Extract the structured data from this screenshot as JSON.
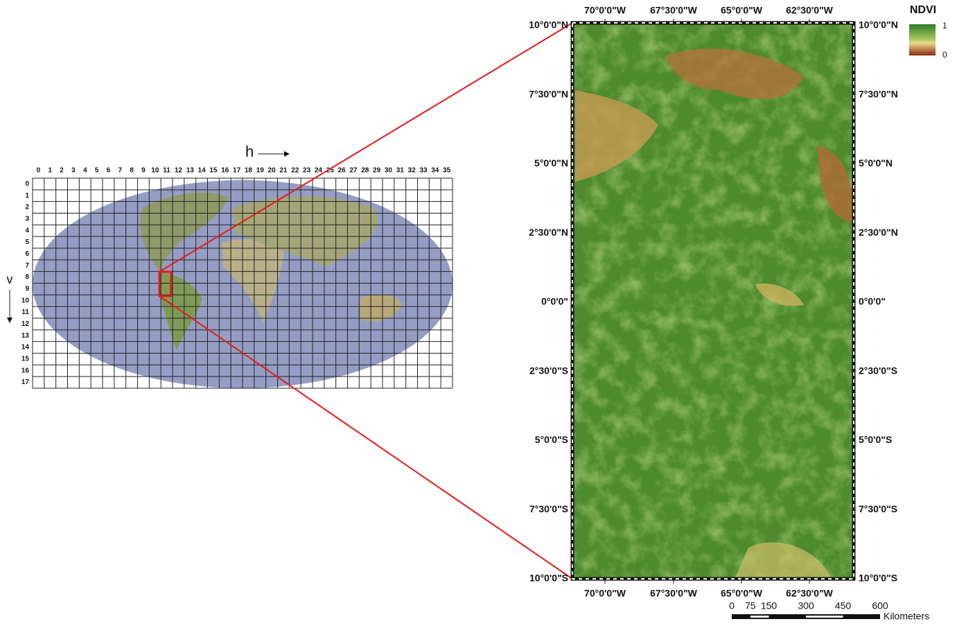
{
  "grid_map": {
    "h_label": "h",
    "v_label": "v",
    "columns": [
      0,
      1,
      2,
      3,
      4,
      5,
      6,
      7,
      8,
      9,
      10,
      11,
      12,
      13,
      14,
      15,
      16,
      17,
      18,
      19,
      20,
      21,
      22,
      23,
      24,
      25,
      26,
      27,
      28,
      29,
      30,
      31,
      32,
      33,
      34,
      35
    ],
    "rows": [
      0,
      1,
      2,
      3,
      4,
      5,
      6,
      7,
      8,
      9,
      10,
      11,
      12,
      13,
      14,
      15,
      16,
      17
    ]
  },
  "ndvi_map": {
    "top_lon": [
      "70°0'0\"W",
      "67°30'0\"W",
      "65°0'0\"W",
      "62°30'0\"W"
    ],
    "bottom_lon": [
      "70°0'0\"W",
      "67°30'0\"W",
      "65°0'0\"W",
      "62°30'0\"W"
    ],
    "left_lat": [
      "10°0'0\"N",
      "7°30'0\"N",
      "5°0'0\"N",
      "2°30'0\"N",
      "0°0'0\"",
      "2°30'0\"S",
      "5°0'0\"S",
      "7°30'0\"S",
      "10°0'0\"S"
    ],
    "right_lat": [
      "10°0'0\"N",
      "7°30'0\"N",
      "5°0'0\"N",
      "2°30'0\"N",
      "0°0'0\"",
      "2°30'0\"S",
      "5°0'0\"S",
      "7°30'0\"S",
      "10°0'0\"S"
    ]
  },
  "legend": {
    "title": "NDVI",
    "max": 1,
    "min": 0
  },
  "scale_bar": {
    "labels": [
      0,
      75,
      150,
      300,
      450,
      600
    ],
    "unit": "Kilometers"
  }
}
